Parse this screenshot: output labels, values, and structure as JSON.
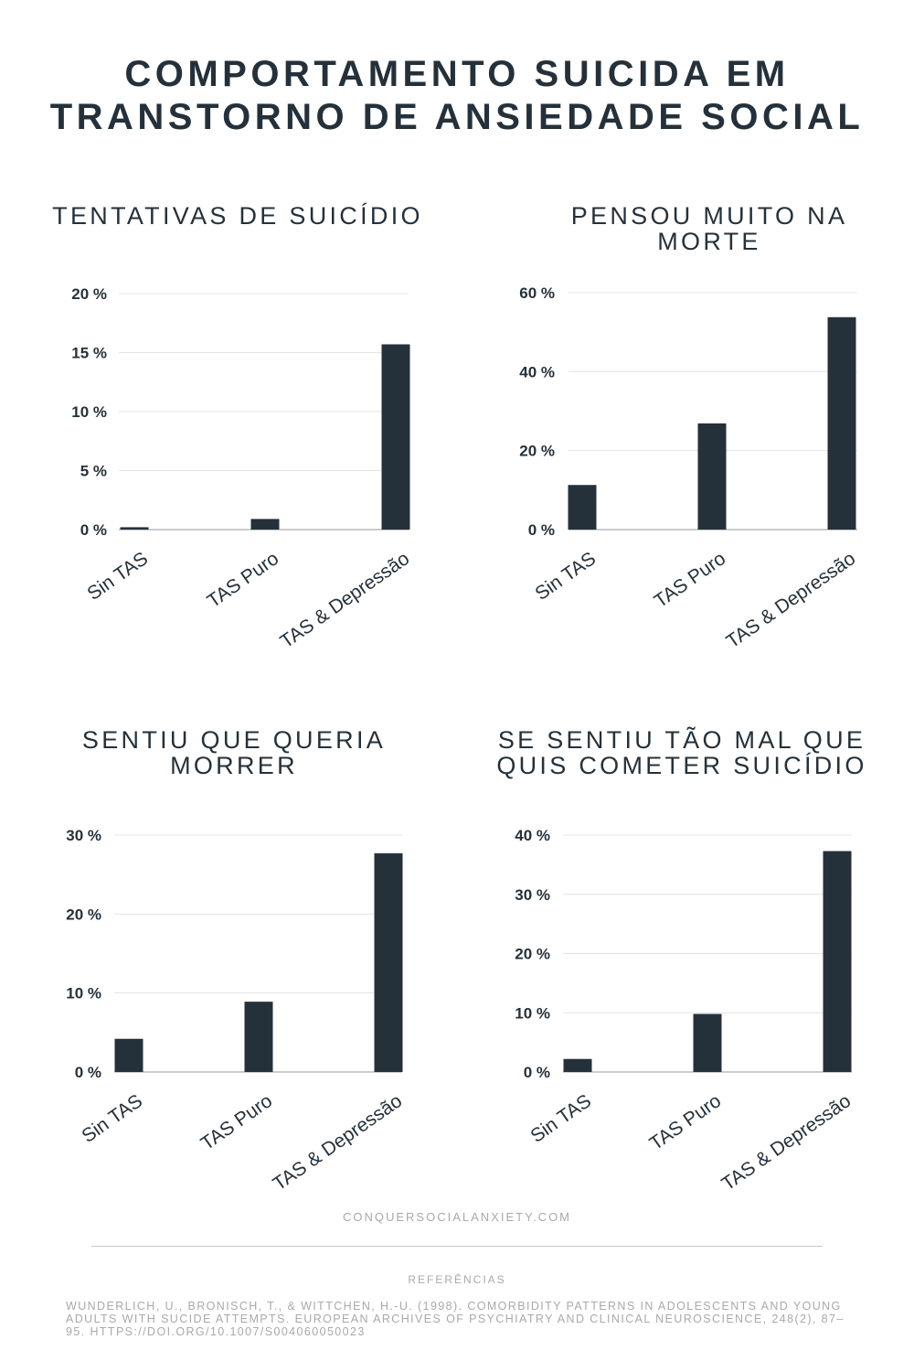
{
  "title": {
    "line1": "COMPORTAMENTO SUICIDA EM",
    "line2": "TRANSTORNO DE ANSIEDADE SOCIAL"
  },
  "colors": {
    "bar": "#25313a",
    "grid": "#e4e4e4",
    "axis": "#9a9a9a",
    "text": "#25313a"
  },
  "chart_data": [
    {
      "type": "bar",
      "title": "TENTATIVAS DE SUICÍDIO",
      "categories": [
        "Sin TAS",
        "TAS Puro",
        "TAS & Depressão"
      ],
      "values": [
        0.2,
        0.9,
        15.7
      ],
      "ylim": [
        0,
        20
      ],
      "yticks": [
        0,
        5,
        10,
        15,
        20
      ],
      "ytick_suffix": " %",
      "grid": true,
      "legend": "none"
    },
    {
      "type": "bar",
      "title": "PENSOU MUITO NA MORTE",
      "categories": [
        "Sin TAS",
        "TAS Puro",
        "TAS & Depressão"
      ],
      "values": [
        11.3,
        26.9,
        53.8
      ],
      "ylim": [
        0,
        60
      ],
      "yticks": [
        0,
        20,
        40,
        60
      ],
      "ytick_suffix": " %",
      "grid": true,
      "legend": "none"
    },
    {
      "type": "bar",
      "title": "SENTIU QUE QUERIA MORRER",
      "categories": [
        "Sin TAS",
        "TAS Puro",
        "TAS & Depressão"
      ],
      "values": [
        4.2,
        8.9,
        27.7
      ],
      "ylim": [
        0,
        30
      ],
      "yticks": [
        0,
        10,
        20,
        30
      ],
      "ytick_suffix": " %",
      "grid": true,
      "legend": "none"
    },
    {
      "type": "bar",
      "title": "SE SENTIU TÃO MAL QUE QUIS COMETER SUICÍDIO",
      "categories": [
        "Sin TAS",
        "TAS Puro",
        "TAS & Depressão"
      ],
      "values": [
        2.2,
        9.8,
        37.3
      ],
      "ylim": [
        0,
        40
      ],
      "yticks": [
        0,
        10,
        20,
        30,
        40
      ],
      "ytick_suffix": " %",
      "grid": true,
      "legend": "none"
    }
  ],
  "footer": {
    "site": "CONQUERSOCIALANXIETY.COM",
    "references_heading": "REFERÊNCIAS",
    "reference": "Wunderlich, U., Bronisch, T., & Wittchen, H.-U. (1998). Comorbidity patterns in adolescents and young adults with sucide attempts. European Archives of Psychiatry and Clinical Neuroscience, 248(2), 87–95. https://doi.org/10.1007/s004060050023"
  }
}
